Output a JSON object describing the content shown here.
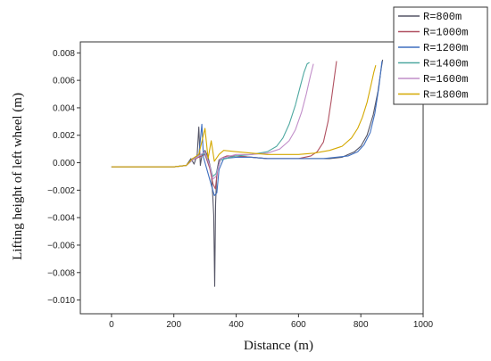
{
  "chart_data": {
    "type": "line",
    "title": "",
    "xlabel": "Distance (m)",
    "ylabel": "Lifting height of left wheel (m)",
    "xlim": [
      -100,
      1000
    ],
    "ylim": [
      -0.011,
      0.0088
    ],
    "xticks": [
      0,
      200,
      400,
      600,
      800,
      1000
    ],
    "yticks": [
      -0.01,
      -0.008,
      -0.006,
      -0.004,
      -0.002,
      0.0,
      0.002,
      0.004,
      0.006,
      0.008
    ],
    "xtick_labels": [
      "0",
      "200",
      "400",
      "600",
      "800",
      "1000"
    ],
    "ytick_labels": [
      "−0.010",
      "−0.008",
      "−0.006",
      "−0.004",
      "−0.002",
      "0.000",
      "0.002",
      "0.004",
      "0.006",
      "0.008"
    ],
    "grid": false,
    "legend_position": "top-right",
    "series": [
      {
        "name": "R=800m",
        "color": "#555566",
        "x": [
          0,
          200,
          240,
          255,
          265,
          275,
          280,
          285,
          290,
          300,
          310,
          320,
          325,
          328,
          331,
          334,
          338,
          345,
          360,
          400,
          450,
          500,
          550,
          600,
          650,
          700,
          740,
          760,
          780,
          800,
          820,
          840,
          855,
          865,
          870
        ],
        "y": [
          -0.0003,
          -0.0003,
          -0.0002,
          0.0003,
          -0.0001,
          0.0006,
          0.0026,
          -0.0002,
          0.0005,
          0.0009,
          0.0004,
          -0.0006,
          -0.0025,
          -0.0038,
          -0.009,
          -0.003,
          -0.0006,
          0.0002,
          0.0004,
          0.0005,
          0.0004,
          0.0003,
          0.0003,
          0.0003,
          0.0003,
          0.0003,
          0.0004,
          0.0006,
          0.0008,
          0.0012,
          0.002,
          0.0035,
          0.0052,
          0.0068,
          0.0075
        ]
      },
      {
        "name": "R=1000m",
        "color": "#b05060",
        "x": [
          0,
          200,
          240,
          260,
          280,
          300,
          315,
          325,
          333,
          340,
          350,
          370,
          400,
          450,
          500,
          550,
          600,
          640,
          660,
          680,
          695,
          705,
          715,
          722
        ],
        "y": [
          -0.0003,
          -0.0003,
          -0.0002,
          0.0002,
          0.0004,
          0.0006,
          -0.0004,
          -0.0015,
          -0.0019,
          -0.0006,
          0.0003,
          0.0005,
          0.0005,
          0.0004,
          0.0003,
          0.0003,
          0.0003,
          0.0005,
          0.0008,
          0.0015,
          0.003,
          0.0045,
          0.0062,
          0.0074
        ]
      },
      {
        "name": "R=1200m",
        "color": "#3f6fbf",
        "x": [
          0,
          200,
          240,
          260,
          280,
          290,
          295,
          305,
          320,
          330,
          338,
          345,
          360,
          400,
          450,
          500,
          550,
          600,
          640,
          680,
          720,
          760,
          790,
          810,
          830,
          845,
          858,
          868
        ],
        "y": [
          -0.0003,
          -0.0003,
          -0.0002,
          0.0003,
          0.0005,
          0.0028,
          0.0004,
          -0.0004,
          -0.0016,
          -0.0024,
          -0.0022,
          -0.0005,
          0.0003,
          0.0004,
          0.0004,
          0.0003,
          0.0003,
          0.0003,
          0.0003,
          0.0003,
          0.0004,
          0.0005,
          0.0008,
          0.0013,
          0.0022,
          0.0036,
          0.0055,
          0.0074
        ]
      },
      {
        "name": "R=1400m",
        "color": "#4ea8a0",
        "x": [
          0,
          200,
          240,
          260,
          280,
          300,
          315,
          325,
          335,
          350,
          400,
          450,
          500,
          530,
          550,
          570,
          590,
          605,
          618,
          628,
          635
        ],
        "y": [
          -0.0003,
          -0.0003,
          -0.0002,
          0.0002,
          0.0005,
          0.0007,
          -0.0002,
          -0.001,
          -0.0008,
          0.0002,
          0.0005,
          0.0006,
          0.0008,
          0.0012,
          0.0018,
          0.0028,
          0.0042,
          0.0055,
          0.0066,
          0.0072,
          0.0073
        ]
      },
      {
        "name": "R=1600m",
        "color": "#c18ec9",
        "x": [
          0,
          200,
          240,
          260,
          280,
          300,
          315,
          325,
          335,
          350,
          400,
          450,
          500,
          540,
          570,
          590,
          610,
          625,
          638,
          648
        ],
        "y": [
          -0.0003,
          -0.0003,
          -0.0002,
          0.0002,
          0.0005,
          0.0008,
          -0.0002,
          -0.0012,
          -0.001,
          0.0003,
          0.0006,
          0.0006,
          0.0007,
          0.001,
          0.0016,
          0.0024,
          0.0037,
          0.005,
          0.0063,
          0.0072
        ]
      },
      {
        "name": "R=1800m",
        "color": "#d4a800",
        "x": [
          0,
          200,
          240,
          260,
          280,
          300,
          310,
          320,
          330,
          345,
          360,
          400,
          450,
          500,
          550,
          600,
          650,
          700,
          740,
          770,
          790,
          805,
          820,
          832,
          842,
          848
        ],
        "y": [
          -0.0003,
          -0.0003,
          -0.0002,
          0.0003,
          0.0006,
          0.0025,
          0.0003,
          0.0016,
          0.0001,
          0.0006,
          0.0009,
          0.0008,
          0.0007,
          0.0006,
          0.0006,
          0.0006,
          0.0007,
          0.0009,
          0.0012,
          0.0018,
          0.0025,
          0.0033,
          0.0044,
          0.0056,
          0.0066,
          0.0071
        ]
      }
    ]
  }
}
